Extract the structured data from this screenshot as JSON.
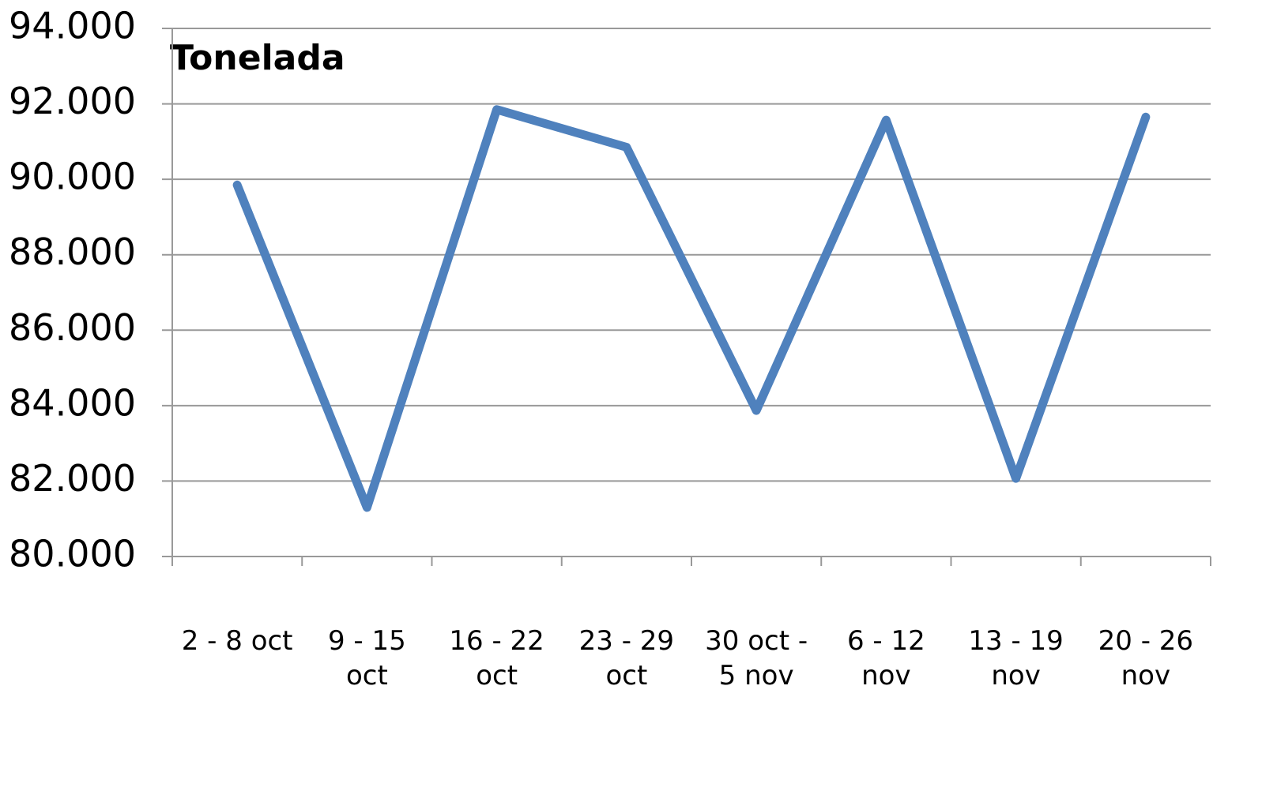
{
  "chart_data": {
    "type": "line",
    "title": "Tonelada",
    "categories": [
      "2 - 8 oct",
      "9 - 15 oct",
      "16 - 22 oct",
      "23 - 29 oct",
      "30 oct - 5 nov",
      "6 - 12 nov",
      "13 - 19 nov",
      "20 - 26 nov"
    ],
    "series": [
      {
        "name": "Tonelada",
        "color": "#4f81bd",
        "values": [
          89850,
          81300,
          91850,
          90850,
          83870,
          91570,
          82070,
          91650
        ]
      }
    ],
    "ylim": [
      80000,
      94000
    ],
    "yticks": [
      {
        "value": 80000,
        "label": "80.000"
      },
      {
        "value": 82000,
        "label": "82.000"
      },
      {
        "value": 84000,
        "label": "84.000"
      },
      {
        "value": 86000,
        "label": "86.000"
      },
      {
        "value": 88000,
        "label": "88.000"
      },
      {
        "value": 90000,
        "label": "90.000"
      },
      {
        "value": 92000,
        "label": "92.000"
      },
      {
        "value": 94000,
        "label": "94.000"
      }
    ],
    "grid": true
  }
}
